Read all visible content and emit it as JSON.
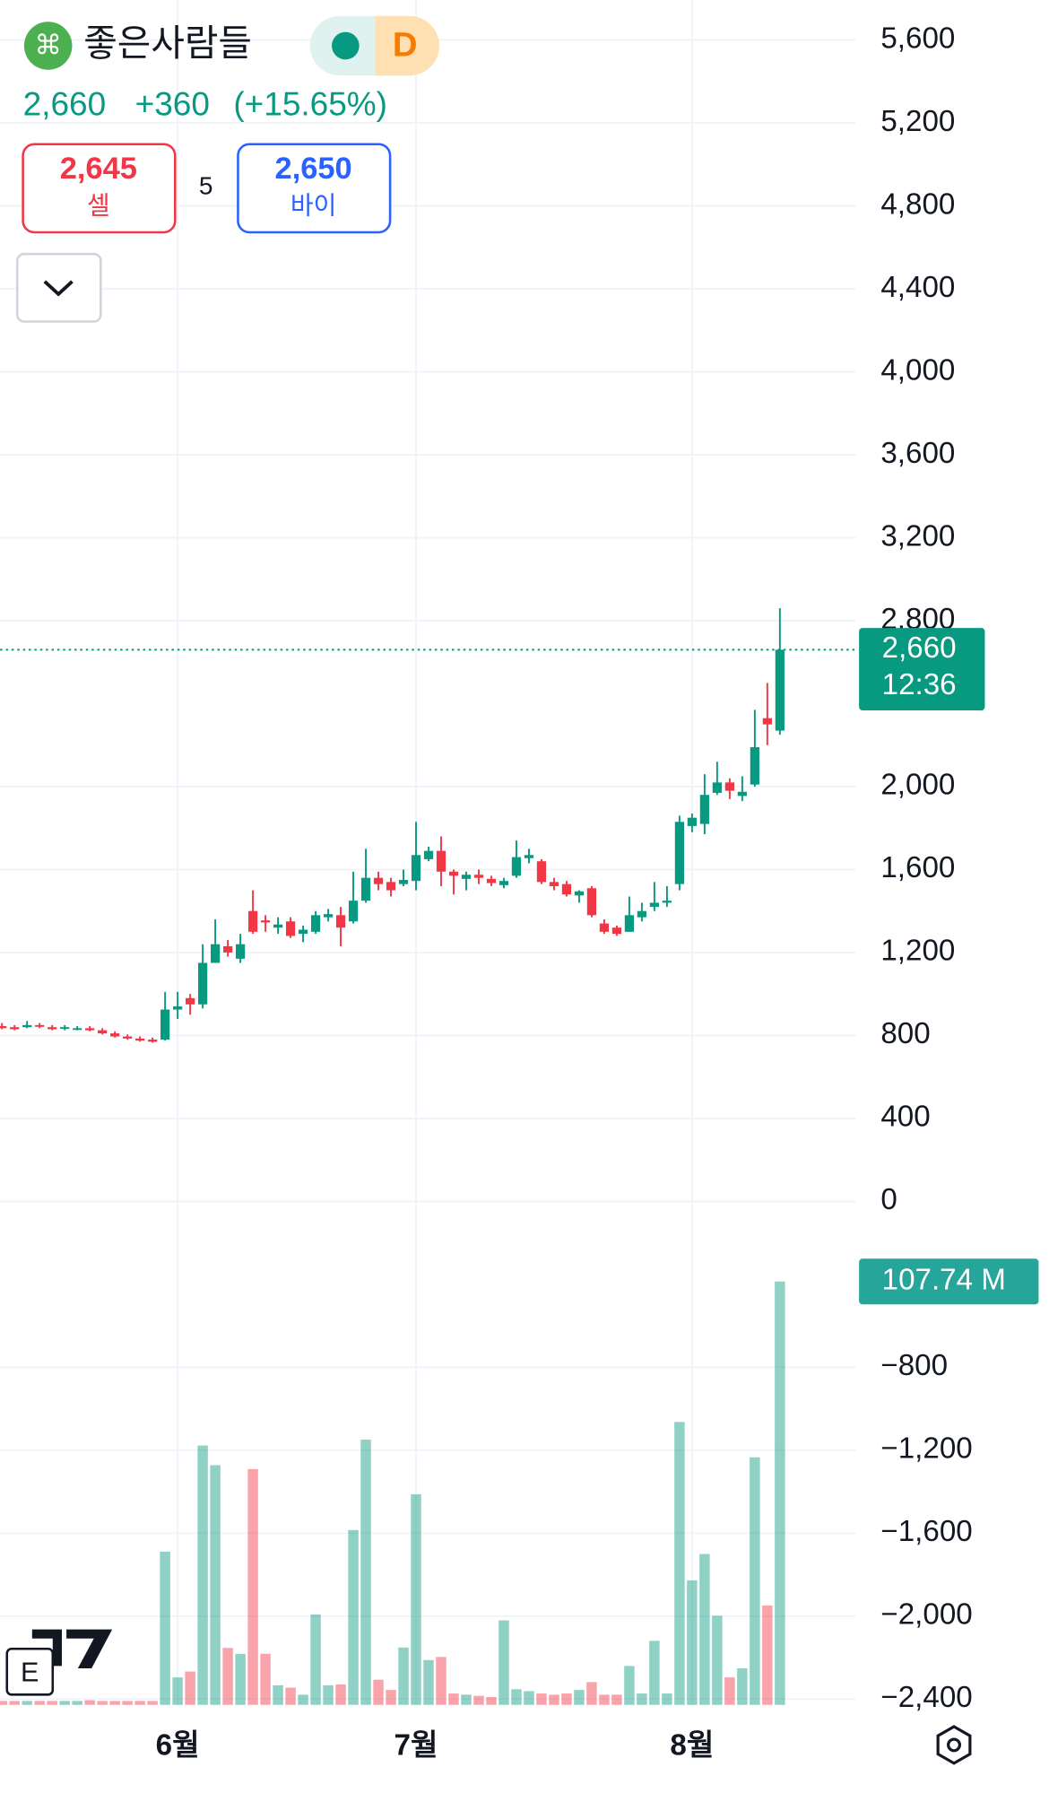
{
  "header": {
    "symbol": "좋은사람들",
    "interval": "D",
    "price": "2,660",
    "change": "+360",
    "change_pct": "(+15.65%)",
    "sell_price": "2,645",
    "sell_label": "셀",
    "spread": "5",
    "buy_price": "2,650",
    "buy_label": "바이"
  },
  "chart_data": {
    "type": "candlestick",
    "categories": [
      null,
      null,
      null,
      null,
      null,
      null,
      null,
      null,
      null,
      null,
      null,
      null,
      null,
      null,
      "6월",
      null,
      null,
      null,
      null,
      null,
      null,
      null,
      null,
      null,
      null,
      null,
      null,
      null,
      null,
      null,
      null,
      null,
      null,
      "7월",
      null,
      null,
      null,
      null,
      null,
      null,
      null,
      null,
      null,
      null,
      null,
      null,
      null,
      null,
      null,
      null,
      null,
      null,
      null,
      null,
      null,
      "8월",
      null,
      null,
      null,
      null,
      null,
      null,
      null
    ],
    "open": [
      845,
      840,
      840,
      850,
      840,
      835,
      830,
      835,
      825,
      810,
      795,
      785,
      780,
      780,
      925,
      980,
      950,
      1150,
      1230,
      1170,
      1400,
      1355,
      1320,
      1350,
      1290,
      1300,
      1370,
      1380,
      1350,
      1450,
      1560,
      1540,
      1530,
      1545,
      1650,
      1690,
      1590,
      1555,
      1575,
      1555,
      1525,
      1570,
      1655,
      1640,
      1540,
      1530,
      1475,
      1510,
      1340,
      1320,
      1300,
      1370,
      1420,
      1440,
      1530,
      1810,
      1820,
      1970,
      2020,
      1955,
      2010,
      2330,
      2270
    ],
    "high": [
      860,
      850,
      870,
      860,
      850,
      850,
      845,
      845,
      835,
      820,
      805,
      795,
      790,
      1010,
      1010,
      1000,
      1240,
      1360,
      1260,
      1290,
      1500,
      1380,
      1370,
      1370,
      1330,
      1400,
      1410,
      1420,
      1590,
      1700,
      1590,
      1560,
      1600,
      1830,
      1710,
      1760,
      1600,
      1590,
      1600,
      1570,
      1560,
      1740,
      1700,
      1650,
      1560,
      1545,
      1500,
      1520,
      1360,
      1330,
      1470,
      1440,
      1540,
      1520,
      1860,
      1870,
      2060,
      2120,
      2040,
      2050,
      2370,
      2500,
      2860
    ],
    "low": [
      830,
      825,
      835,
      835,
      825,
      825,
      825,
      820,
      805,
      790,
      780,
      770,
      765,
      775,
      880,
      900,
      930,
      1150,
      1180,
      1150,
      1290,
      1300,
      1290,
      1270,
      1250,
      1290,
      1350,
      1230,
      1340,
      1440,
      1500,
      1470,
      1520,
      1500,
      1640,
      1520,
      1480,
      1500,
      1530,
      1520,
      1510,
      1560,
      1630,
      1530,
      1500,
      1470,
      1440,
      1370,
      1290,
      1280,
      1300,
      1350,
      1400,
      1420,
      1500,
      1780,
      1770,
      1960,
      1940,
      1930,
      2000,
      2200,
      2250
    ],
    "close": [
      835,
      830,
      850,
      845,
      830,
      840,
      835,
      825,
      810,
      795,
      785,
      775,
      770,
      925,
      940,
      950,
      1150,
      1240,
      1200,
      1240,
      1300,
      1345,
      1335,
      1280,
      1310,
      1380,
      1385,
      1320,
      1450,
      1560,
      1530,
      1500,
      1550,
      1670,
      1690,
      1590,
      1570,
      1575,
      1560,
      1535,
      1545,
      1660,
      1670,
      1540,
      1520,
      1480,
      1495,
      1380,
      1300,
      1290,
      1380,
      1400,
      1440,
      1450,
      1830,
      1850,
      1960,
      2020,
      1980,
      1975,
      2190,
      2300,
      2660
    ],
    "volume": [
      1,
      1,
      1,
      1,
      1,
      1,
      1,
      1.2,
      1,
      1,
      1,
      1,
      1,
      39,
      7,
      8.5,
      66,
      61,
      14.5,
      13,
      60,
      13,
      5,
      4.4,
      2.6,
      23,
      5,
      5.2,
      44.5,
      67.5,
      6.4,
      3.8,
      14.6,
      53.6,
      11.4,
      12.2,
      2.9,
      2.6,
      2.3,
      2,
      21.5,
      4,
      3.5,
      2.9,
      2.6,
      2.9,
      3.8,
      5.8,
      2.6,
      2.6,
      9.9,
      2.9,
      16.3,
      2.9,
      72,
      31.7,
      38.4,
      22.7,
      7,
      9.3,
      63,
      25.3,
      107.74
    ],
    "volume_last_label": "107.74 M",
    "last_label": "2,660",
    "countdown": "12:36",
    "ylim": [
      -2428,
      5793
    ],
    "yticks": [
      {
        "value": 5600,
        "label": "5,600"
      },
      {
        "value": 5200,
        "label": "5,200"
      },
      {
        "value": 4800,
        "label": "4,800"
      },
      {
        "value": 4400,
        "label": "4,400"
      },
      {
        "value": 4000,
        "label": "4,000"
      },
      {
        "value": 3600,
        "label": "3,600"
      },
      {
        "value": 3200,
        "label": "3,200"
      },
      {
        "value": 2800,
        "label": "2,800"
      },
      {
        "value": 2000,
        "label": "2,000"
      },
      {
        "value": 1600,
        "label": "1,600"
      },
      {
        "value": 1200,
        "label": "1,200"
      },
      800,
      400,
      0,
      {
        "value": -800,
        "label": "−800"
      },
      {
        "value": -1200,
        "label": "−1,200"
      },
      {
        "value": -1600,
        "label": "−1,600"
      },
      {
        "value": -2000,
        "label": "−2,000"
      },
      {
        "value": -2400,
        "label": "−2,400"
      }
    ],
    "grid": true,
    "up_color": "#089981",
    "down_color": "#f23645"
  }
}
